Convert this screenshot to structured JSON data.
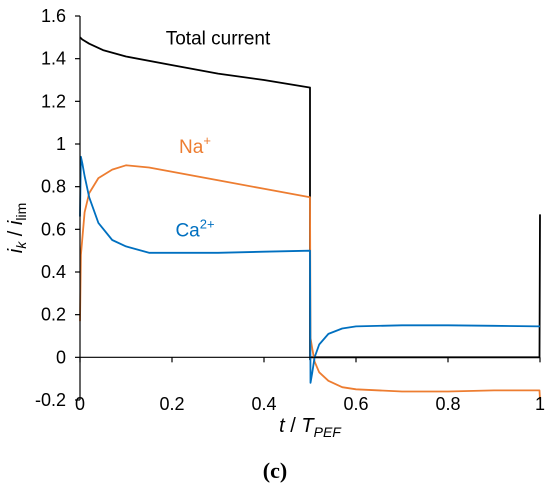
{
  "chart_data": {
    "type": "line",
    "title": "",
    "xlabel": {
      "main": "t",
      "sep": " / ",
      "sym": "T",
      "sub": "PEF"
    },
    "ylabel": {
      "num_main": "i",
      "num_sub": "k",
      "sep": " / ",
      "den_main": "i",
      "den_sub": "lim"
    },
    "panel_label": "(c)",
    "xlim": [
      0,
      1
    ],
    "ylim": [
      -0.2,
      1.6
    ],
    "x_ticks": [
      0,
      0.2,
      0.4,
      0.6,
      0.8,
      1
    ],
    "x_tick_labels": [
      "0",
      "0.2",
      "0.4",
      "0.6",
      "0.8",
      "1"
    ],
    "y_ticks": [
      -0.2,
      0,
      0.2,
      0.4,
      0.6,
      0.8,
      1,
      1.2,
      1.4,
      1.6
    ],
    "y_tick_labels": [
      "-0.2",
      "0",
      "0.2",
      "0.4",
      "0.6",
      "0.8",
      "1",
      "1.2",
      "1.4",
      "1.6"
    ],
    "grid": false,
    "legend": "none",
    "series": [
      {
        "name": "Total current",
        "color": "#000000",
        "points": [
          [
            0,
            1.5
          ],
          [
            0.005,
            1.49
          ],
          [
            0.02,
            1.47
          ],
          [
            0.05,
            1.44
          ],
          [
            0.1,
            1.41
          ],
          [
            0.2,
            1.37
          ],
          [
            0.3,
            1.33
          ],
          [
            0.4,
            1.3
          ],
          [
            0.499,
            1.265
          ],
          [
            0.5,
            1.265
          ],
          [
            0.5,
            -0.01
          ],
          [
            0.5,
            0.0
          ],
          [
            0.999,
            0.0
          ],
          [
            1.0,
            0.67
          ]
        ]
      },
      {
        "name": "Na+",
        "color": "#ED7D31",
        "points": [
          [
            0,
            0.17
          ],
          [
            0.002,
            0.48
          ],
          [
            0.01,
            0.68
          ],
          [
            0.02,
            0.77
          ],
          [
            0.04,
            0.84
          ],
          [
            0.07,
            0.88
          ],
          [
            0.1,
            0.9
          ],
          [
            0.15,
            0.89
          ],
          [
            0.2,
            0.87
          ],
          [
            0.3,
            0.83
          ],
          [
            0.4,
            0.79
          ],
          [
            0.5,
            0.75
          ],
          [
            0.501,
            0.09
          ],
          [
            0.505,
            0.04
          ],
          [
            0.51,
            -0.02
          ],
          [
            0.52,
            -0.07
          ],
          [
            0.54,
            -0.11
          ],
          [
            0.57,
            -0.14
          ],
          [
            0.6,
            -0.15
          ],
          [
            0.7,
            -0.16
          ],
          [
            0.8,
            -0.16
          ],
          [
            0.9,
            -0.155
          ],
          [
            0.999,
            -0.155
          ],
          [
            1.0,
            -0.2
          ]
        ]
      },
      {
        "name": "Ca2+",
        "color": "#0070C0",
        "points": [
          [
            0,
            0.66
          ],
          [
            0.002,
            0.94
          ],
          [
            0.005,
            0.91
          ],
          [
            0.01,
            0.85
          ],
          [
            0.02,
            0.75
          ],
          [
            0.04,
            0.63
          ],
          [
            0.07,
            0.55
          ],
          [
            0.1,
            0.52
          ],
          [
            0.15,
            0.49
          ],
          [
            0.2,
            0.49
          ],
          [
            0.3,
            0.49
          ],
          [
            0.4,
            0.495
          ],
          [
            0.5,
            0.5
          ],
          [
            0.501,
            -0.12
          ],
          [
            0.505,
            -0.07
          ],
          [
            0.51,
            0.0
          ],
          [
            0.52,
            0.06
          ],
          [
            0.54,
            0.11
          ],
          [
            0.57,
            0.135
          ],
          [
            0.6,
            0.145
          ],
          [
            0.7,
            0.15
          ],
          [
            0.8,
            0.15
          ],
          [
            0.9,
            0.148
          ],
          [
            1.0,
            0.145
          ]
        ]
      }
    ],
    "annotations": [
      {
        "text": "Total current",
        "x": 0.3,
        "y": 1.5,
        "color": "#000000",
        "main": "Total current",
        "sup": ""
      },
      {
        "text": "Na+",
        "x": 0.25,
        "y": 0.99,
        "color": "#ED7D31",
        "main": "Na",
        "sup": "+"
      },
      {
        "text": "Ca2+",
        "x": 0.25,
        "y": 0.6,
        "color": "#0070C0",
        "main": "Ca",
        "sup": "2+"
      }
    ]
  }
}
